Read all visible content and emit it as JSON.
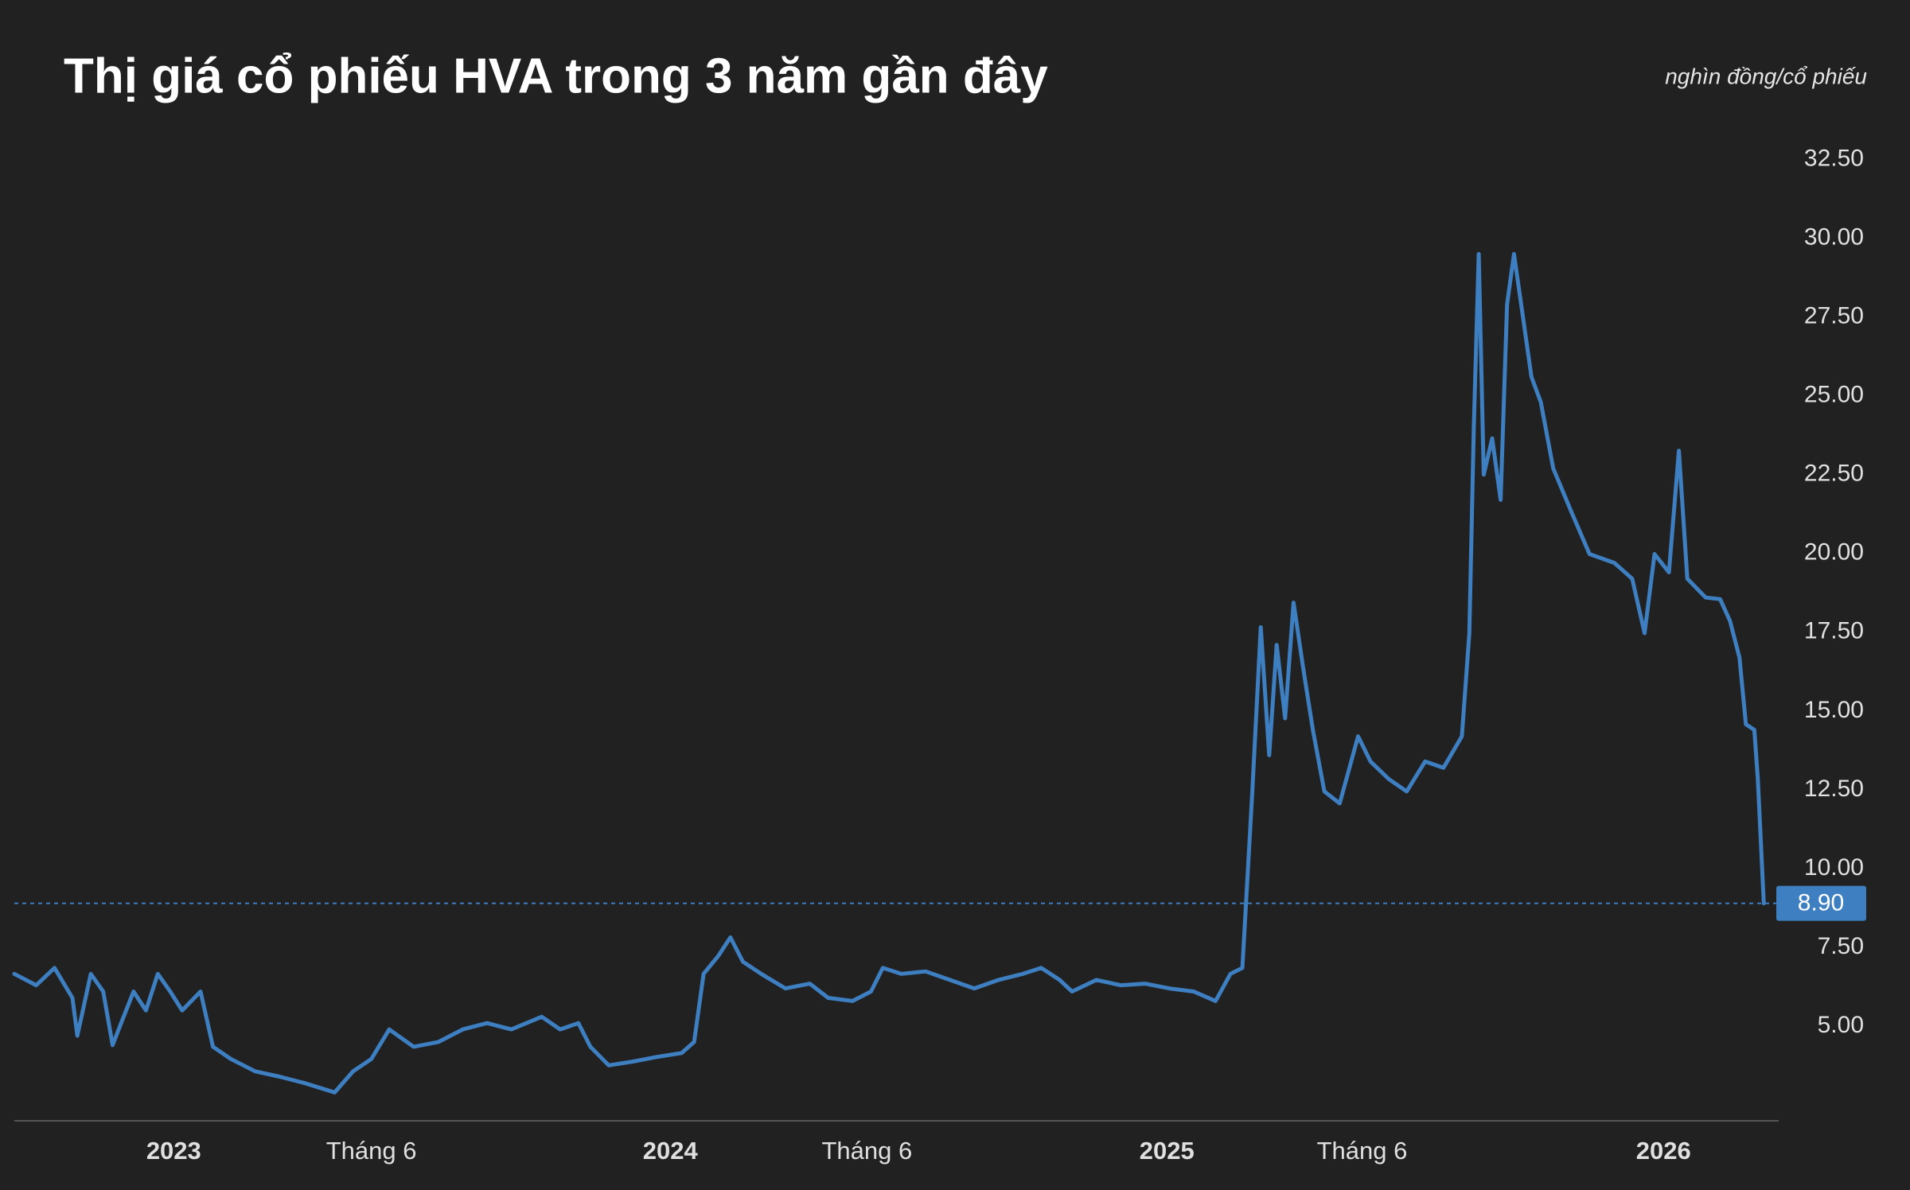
{
  "chart_data": {
    "type": "line",
    "title": "Thị giá cổ phiếu HVA trong 3 năm gần đây",
    "y_unit": "nghìn đồng/cổ phiếu",
    "color": "#3d7fc1",
    "x": [
      2022.679,
      2022.723,
      2022.76,
      2022.796,
      2022.806,
      2022.833,
      2022.858,
      2022.877,
      2022.894,
      2022.919,
      2022.944,
      2022.968,
      2022.993,
      2023.017,
      2023.054,
      2023.079,
      2023.115,
      2023.164,
      2023.213,
      2023.263,
      2023.324,
      2023.361,
      2023.398,
      2023.434,
      2023.483,
      2023.533,
      2023.582,
      2023.631,
      2023.68,
      2023.741,
      2023.778,
      2023.815,
      2023.839,
      2023.876,
      2023.925,
      2023.974,
      2024.023,
      2024.048,
      2024.067,
      2024.097,
      2024.121,
      2024.146,
      2024.183,
      2024.232,
      2024.281,
      2024.318,
      2024.367,
      2024.404,
      2024.428,
      2024.465,
      2024.514,
      2024.563,
      2024.612,
      2024.661,
      2024.71,
      2024.747,
      2024.784,
      2024.809,
      2024.858,
      2024.907,
      2024.956,
      2025.005,
      2025.054,
      2025.098,
      2025.128,
      2025.152,
      2025.172,
      2025.189,
      2025.206,
      2025.221,
      2025.238,
      2025.255,
      2025.275,
      2025.294,
      2025.317,
      2025.348,
      2025.385,
      2025.41,
      2025.447,
      2025.483,
      2025.52,
      2025.557,
      2025.594,
      2025.609,
      2025.618,
      2025.628,
      2025.638,
      2025.655,
      2025.672,
      2025.685,
      2025.699,
      2025.717,
      2025.734,
      2025.753,
      2025.778,
      2025.815,
      2025.851,
      2025.901,
      2025.937,
      2025.962,
      2025.982,
      2026.011,
      2026.031,
      2026.048,
      2026.085,
      2026.114,
      2026.134,
      2026.153,
      2026.166,
      2026.183,
      2026.19,
      2026.202
    ],
    "values": [
      6.66,
      6.3,
      6.85,
      5.9,
      4.7,
      6.66,
      6.1,
      4.4,
      5.1,
      6.1,
      5.5,
      6.66,
      6.1,
      5.5,
      6.1,
      4.35,
      3.96,
      3.57,
      3.4,
      3.2,
      2.9,
      3.57,
      3.96,
      4.9,
      4.35,
      4.5,
      4.9,
      5.1,
      4.9,
      5.3,
      4.9,
      5.1,
      4.35,
      3.76,
      3.88,
      4.03,
      4.15,
      4.5,
      6.66,
      7.24,
      7.82,
      7.05,
      6.66,
      6.2,
      6.35,
      5.9,
      5.8,
      6.1,
      6.85,
      6.66,
      6.74,
      6.47,
      6.2,
      6.47,
      6.66,
      6.85,
      6.47,
      6.1,
      6.47,
      6.3,
      6.35,
      6.2,
      6.1,
      5.8,
      6.66,
      6.85,
      12.45,
      17.66,
      13.6,
      17.1,
      14.77,
      18.44,
      16.3,
      14.4,
      12.45,
      12.07,
      14.2,
      13.4,
      12.84,
      12.45,
      13.4,
      13.2,
      14.2,
      17.47,
      24.0,
      29.5,
      22.5,
      23.65,
      21.7,
      27.9,
      29.5,
      27.5,
      25.6,
      24.8,
      22.7,
      21.3,
      19.98,
      19.7,
      19.2,
      17.47,
      19.98,
      19.4,
      23.26,
      19.2,
      18.6,
      18.55,
      17.86,
      16.7,
      14.58,
      14.4,
      12.84,
      8.9
    ],
    "current": 8.9,
    "current_label": "8.90",
    "xlim": [
      2022.679,
      2026.232
    ],
    "xticks": [
      {
        "value": 2023,
        "label": "2023"
      },
      {
        "value": 2023.398,
        "label": "Tháng 6"
      },
      {
        "value": 2024,
        "label": "2024"
      },
      {
        "value": 2024.396,
        "label": "Tháng 6"
      },
      {
        "value": 2025,
        "label": "2025"
      },
      {
        "value": 2025.393,
        "label": "Tháng 6"
      },
      {
        "value": 2026,
        "label": "2026"
      }
    ],
    "ylim": [
      2,
      34
    ],
    "yticks": [
      {
        "value": 5,
        "label": "5.00"
      },
      {
        "value": 7.5,
        "label": "7.50"
      },
      {
        "value": 10,
        "label": "10.00"
      },
      {
        "value": 12.5,
        "label": "12.50"
      },
      {
        "value": 15,
        "label": "15.00"
      },
      {
        "value": 17.5,
        "label": "17.50"
      },
      {
        "value": 20,
        "label": "20.00"
      },
      {
        "value": 22.5,
        "label": "22.50"
      },
      {
        "value": 25,
        "label": "25.00"
      },
      {
        "value": 27.5,
        "label": "27.50"
      },
      {
        "value": 30,
        "label": "30.00"
      },
      {
        "value": 32.5,
        "label": "32.50"
      }
    ],
    "grid": false
  }
}
